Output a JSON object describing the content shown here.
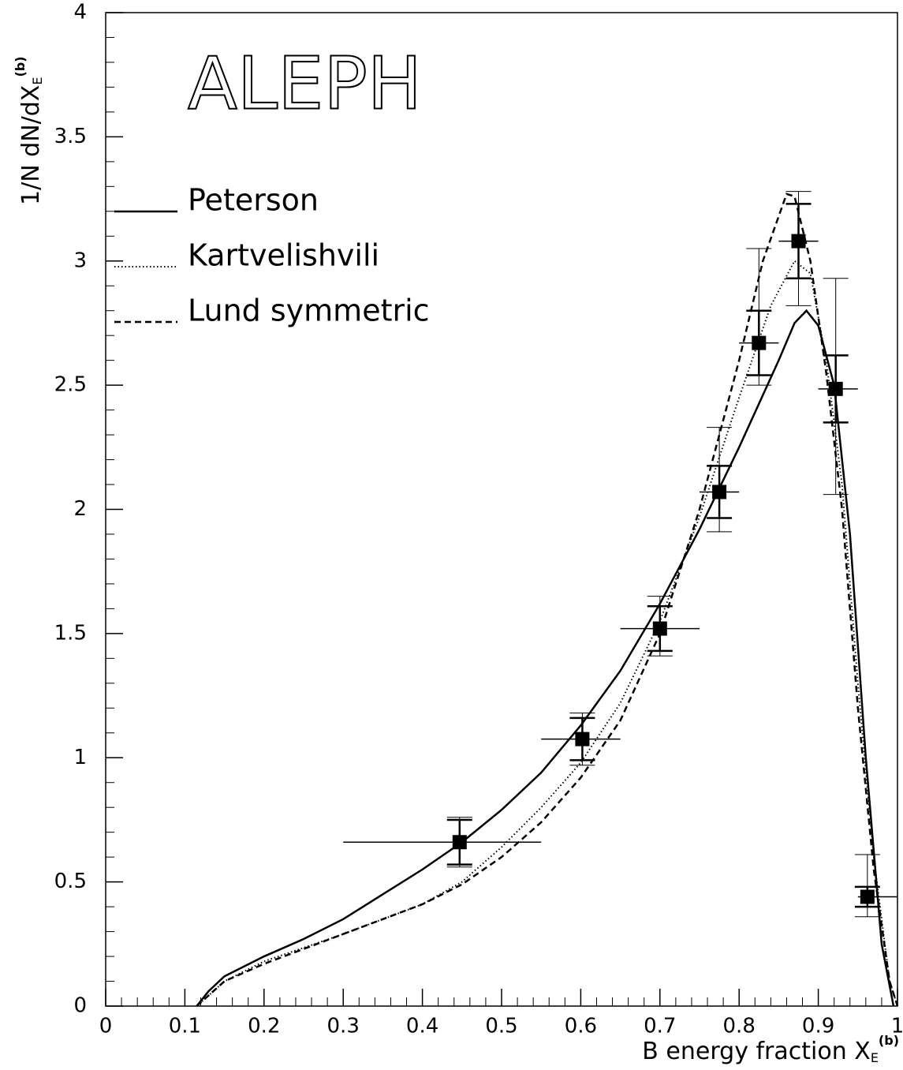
{
  "chart_data": {
    "type": "line",
    "title": "ALEPH",
    "xlabel": {
      "main": "B energy fraction X",
      "sub": "E",
      "sup": "(b)"
    },
    "ylabel": {
      "main": "1/N dN/dX",
      "sub": "E",
      "sup": "(b)"
    },
    "xlim": [
      0,
      1
    ],
    "ylim": [
      0,
      4
    ],
    "xticks": [
      0,
      0.1,
      0.2,
      0.3,
      0.4,
      0.5,
      0.6,
      0.7,
      0.8,
      0.9,
      1
    ],
    "yticks": [
      0,
      0.5,
      1,
      1.5,
      2,
      2.5,
      3,
      3.5,
      4
    ],
    "minor_per_major": 5,
    "legend": "upper-left",
    "series": [
      {
        "name": "Peterson",
        "color": "#000000",
        "dash": "solid",
        "x": [
          0.115,
          0.13,
          0.15,
          0.2,
          0.25,
          0.3,
          0.35,
          0.4,
          0.45,
          0.5,
          0.55,
          0.6,
          0.65,
          0.7,
          0.75,
          0.8,
          0.85,
          0.87,
          0.885,
          0.9,
          0.92,
          0.94,
          0.96,
          0.98,
          0.995
        ],
        "values": [
          0,
          0.06,
          0.12,
          0.2,
          0.27,
          0.35,
          0.45,
          0.55,
          0.66,
          0.79,
          0.94,
          1.13,
          1.35,
          1.62,
          1.92,
          2.25,
          2.6,
          2.75,
          2.8,
          2.74,
          2.5,
          1.9,
          1.0,
          0.25,
          0
        ]
      },
      {
        "name": "Kartvelishvili",
        "color": "#000000",
        "dash": "dotted",
        "x": [
          0.115,
          0.15,
          0.2,
          0.3,
          0.4,
          0.45,
          0.5,
          0.55,
          0.6,
          0.65,
          0.7,
          0.75,
          0.8,
          0.84,
          0.87,
          0.89,
          0.91,
          0.93,
          0.95,
          0.97,
          0.99,
          1.0
        ],
        "values": [
          0,
          0.1,
          0.18,
          0.29,
          0.41,
          0.5,
          0.64,
          0.8,
          0.98,
          1.22,
          1.55,
          1.97,
          2.45,
          2.82,
          3.0,
          2.95,
          2.6,
          2.1,
          1.3,
          0.6,
          0.1,
          0
        ]
      },
      {
        "name": "Lund symmetric",
        "color": "#000000",
        "dash": "dashed",
        "x": [
          0.115,
          0.15,
          0.2,
          0.3,
          0.4,
          0.45,
          0.5,
          0.55,
          0.6,
          0.65,
          0.7,
          0.75,
          0.8,
          0.83,
          0.86,
          0.87,
          0.89,
          0.91,
          0.93,
          0.95,
          0.97,
          0.99,
          1.0
        ],
        "values": [
          0,
          0.1,
          0.17,
          0.29,
          0.41,
          0.49,
          0.6,
          0.74,
          0.92,
          1.15,
          1.5,
          2.0,
          2.6,
          3.0,
          3.27,
          3.26,
          3.0,
          2.55,
          2.0,
          1.2,
          0.55,
          0.1,
          0
        ]
      }
    ],
    "points": {
      "color": "#000000",
      "x": [
        0.447,
        0.602,
        0.7,
        0.775,
        0.825,
        0.875,
        0.922,
        0.962
      ],
      "values": [
        0.66,
        1.075,
        1.52,
        2.07,
        2.67,
        3.08,
        2.485,
        0.44
      ],
      "x_lo": [
        0.3,
        0.55,
        0.65,
        0.75,
        0.8,
        0.85,
        0.9,
        0.95
      ],
      "x_hi": [
        0.55,
        0.65,
        0.75,
        0.8,
        0.85,
        0.9,
        0.95,
        1.0
      ],
      "stat_err": [
        0.09,
        0.085,
        0.09,
        0.105,
        0.13,
        0.15,
        0.135,
        0.04
      ],
      "tot_err_lo": [
        0.1,
        0.105,
        0.11,
        0.16,
        0.17,
        0.26,
        0.425,
        0.08
      ],
      "tot_err_hi": [
        0.1,
        0.105,
        0.13,
        0.26,
        0.38,
        0.2,
        0.445,
        0.17
      ]
    }
  }
}
